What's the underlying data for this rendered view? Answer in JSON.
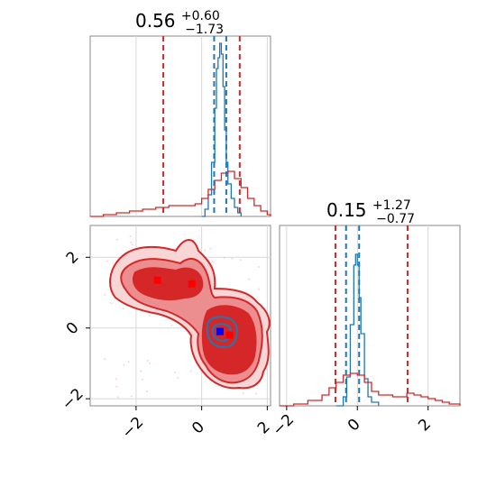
{
  "chart_data": [
    {
      "panel": "marginal-x",
      "type": "histogram",
      "title": {
        "median": "0.56",
        "plus": "+0.60",
        "minus": "−1.73"
      },
      "xlim": [
        -3.4,
        2.1
      ],
      "series": [
        {
          "color": "#1f77b4",
          "x": [
            0.0,
            0.1,
            0.2,
            0.3,
            0.4,
            0.45,
            0.5,
            0.55,
            0.6,
            0.65,
            0.7,
            0.75,
            0.8,
            0.9,
            1.0,
            1.1,
            1.2
          ],
          "y": [
            0.0,
            0.04,
            0.12,
            0.3,
            0.6,
            0.82,
            0.88,
            0.96,
            0.9,
            0.72,
            0.48,
            0.3,
            0.18,
            0.1,
            0.05,
            0.02,
            0.0
          ]
        },
        {
          "color": "#d62728",
          "x": [
            -3.4,
            -3.0,
            -2.6,
            -2.2,
            -1.8,
            -1.4,
            -1.0,
            -0.6,
            -0.2,
            0.0,
            0.2,
            0.4,
            0.6,
            0.8,
            1.0,
            1.2,
            1.4,
            1.6,
            1.8,
            2.0,
            2.1
          ],
          "y": [
            0.0,
            0.01,
            0.02,
            0.03,
            0.04,
            0.05,
            0.06,
            0.06,
            0.07,
            0.1,
            0.15,
            0.2,
            0.24,
            0.25,
            0.21,
            0.16,
            0.1,
            0.06,
            0.03,
            0.01,
            0.0
          ]
        }
      ],
      "quantiles": [
        {
          "x": -1.17,
          "color": "#d62728"
        },
        {
          "x": 1.16,
          "color": "#d62728"
        },
        {
          "x": 0.38,
          "color": "#1f77b4"
        },
        {
          "x": 0.75,
          "color": "#1f77b4"
        }
      ]
    },
    {
      "panel": "marginal-y",
      "type": "histogram",
      "title": {
        "median": "0.15",
        "plus": "+1.27",
        "minus": "−0.77"
      },
      "xlim": [
        -2.2,
        2.9
      ],
      "xticks": [
        "−2",
        "0",
        "2"
      ],
      "series": [
        {
          "color": "#1f77b4",
          "x": [
            -0.6,
            -0.4,
            -0.3,
            -0.2,
            -0.1,
            -0.05,
            0.0,
            0.05,
            0.1,
            0.2,
            0.3,
            0.4,
            0.6
          ],
          "y": [
            0.0,
            0.05,
            0.16,
            0.45,
            0.78,
            0.84,
            0.78,
            0.6,
            0.4,
            0.15,
            0.05,
            0.02,
            0.0
          ]
        },
        {
          "color": "#d62728",
          "x": [
            -2.2,
            -1.8,
            -1.4,
            -1.0,
            -0.8,
            -0.6,
            -0.4,
            -0.2,
            0.0,
            0.2,
            0.4,
            0.6,
            0.8,
            1.0,
            1.2,
            1.4,
            1.6,
            1.8,
            2.0,
            2.2,
            2.4,
            2.6,
            2.9
          ],
          "y": [
            0.0,
            0.01,
            0.03,
            0.06,
            0.1,
            0.13,
            0.17,
            0.18,
            0.17,
            0.13,
            0.08,
            0.06,
            0.06,
            0.05,
            0.05,
            0.07,
            0.06,
            0.05,
            0.04,
            0.03,
            0.02,
            0.01,
            0.0
          ]
        }
      ],
      "quantiles": [
        {
          "x": -0.62,
          "color": "#d62728"
        },
        {
          "x": 1.42,
          "color": "#d62728"
        },
        {
          "x": -0.32,
          "color": "#1f77b4"
        },
        {
          "x": 0.05,
          "color": "#1f77b4"
        }
      ]
    },
    {
      "panel": "joint",
      "type": "contour",
      "xlim": [
        -3.4,
        2.1
      ],
      "ylim": [
        -2.2,
        2.9
      ],
      "xticks": [
        "−2",
        "0",
        "2"
      ],
      "yticks": [
        "−2",
        "0",
        "2"
      ],
      "red_modes": [
        {
          "x": -1.35,
          "y": 1.35
        },
        {
          "x": -0.3,
          "y": 1.25
        },
        {
          "x": 0.85,
          "y": -0.2
        }
      ],
      "blue_mode": {
        "x": 0.56,
        "y": -0.1
      },
      "blue_ring_center": {
        "x": 0.6,
        "y": -0.05
      }
    }
  ]
}
